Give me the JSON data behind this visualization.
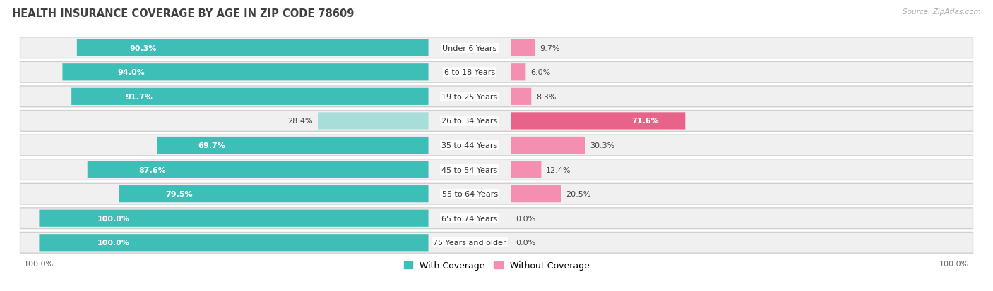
{
  "title": "HEALTH INSURANCE COVERAGE BY AGE IN ZIP CODE 78609",
  "source": "Source: ZipAtlas.com",
  "categories": [
    "Under 6 Years",
    "6 to 18 Years",
    "19 to 25 Years",
    "26 to 34 Years",
    "35 to 44 Years",
    "45 to 54 Years",
    "55 to 64 Years",
    "65 to 74 Years",
    "75 Years and older"
  ],
  "with_coverage": [
    90.3,
    94.0,
    91.7,
    28.4,
    69.7,
    87.6,
    79.5,
    100.0,
    100.0
  ],
  "without_coverage": [
    9.7,
    6.0,
    8.3,
    71.6,
    30.3,
    12.4,
    20.5,
    0.0,
    0.0
  ],
  "color_with": "#3DBFB8",
  "color_with_light": "#A8DED9",
  "color_without": "#F48FB1",
  "color_without_dark": "#E8638A",
  "row_bg": "#e8e8e8",
  "row_inner_bg": "#f5f5f5",
  "title_fontsize": 10.5,
  "label_fontsize": 8,
  "bar_label_fontsize": 8,
  "legend_fontsize": 9,
  "axis_label_fontsize": 8
}
